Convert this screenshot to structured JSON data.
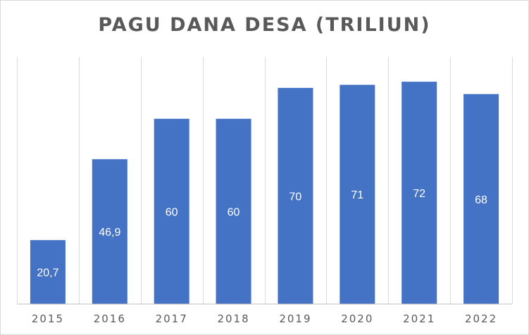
{
  "chart_data": {
    "type": "bar",
    "title": "PAGU DANA DESA (TRILIUN)",
    "categories": [
      "2015",
      "2016",
      "2017",
      "2018",
      "2019",
      "2020",
      "2021",
      "2022"
    ],
    "values": [
      20.7,
      46.9,
      60,
      60,
      70,
      71,
      72,
      68
    ],
    "data_labels": [
      "20,7",
      "46,9",
      "60",
      "60",
      "70",
      "71",
      "72",
      "68"
    ],
    "xlabel": "",
    "ylabel": "",
    "ylim": [
      0,
      80
    ],
    "grid": "vertical category separators",
    "legend": "none",
    "bar_color": "#4472c4"
  }
}
